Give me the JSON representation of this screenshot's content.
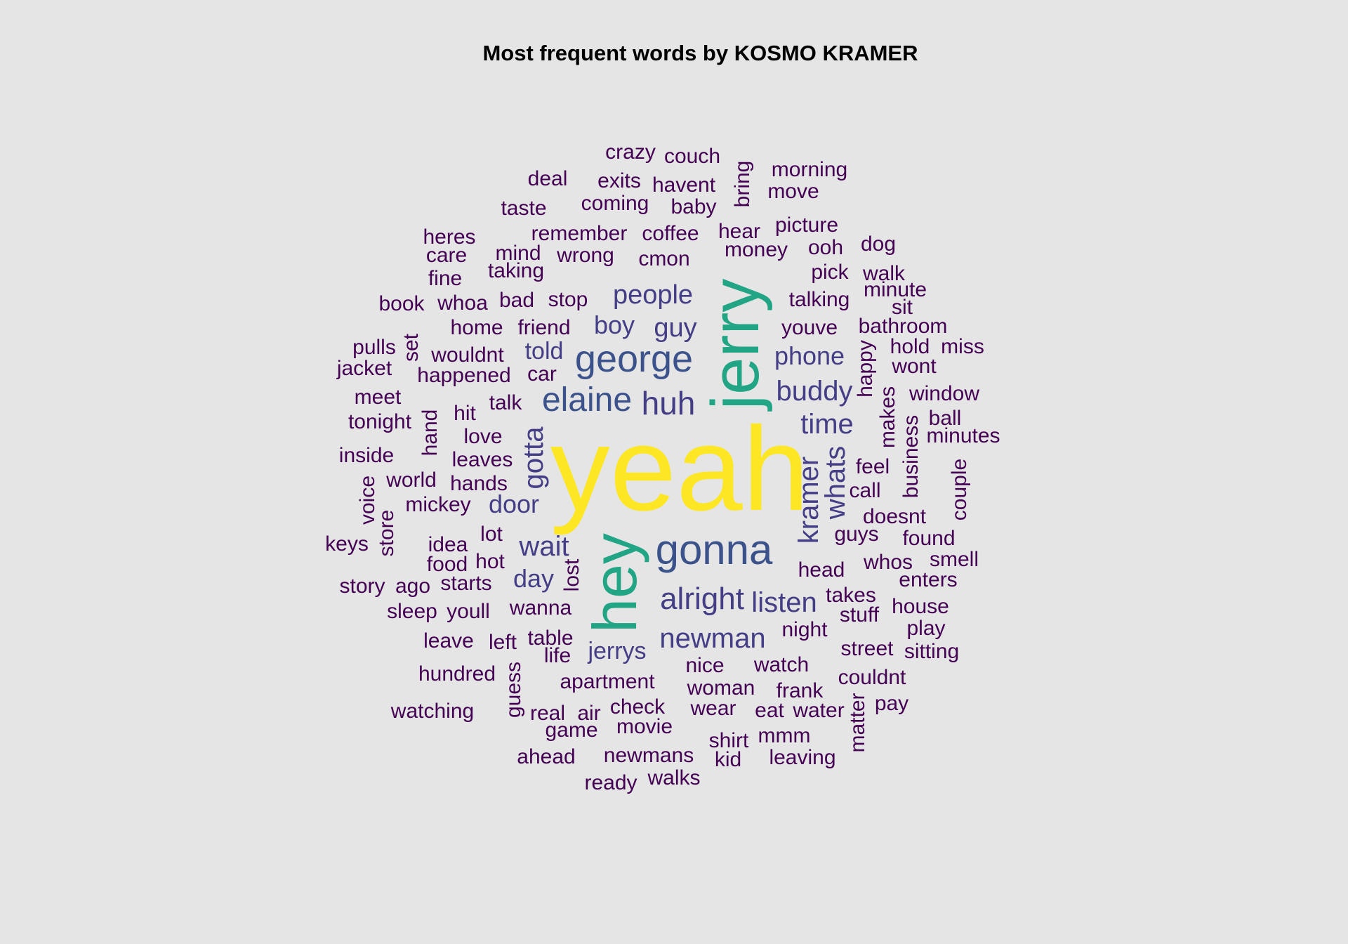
{
  "chart_data": {
    "type": "wordcloud",
    "title": "Most frequent words by KOSMO KRAMER",
    "palette": {
      "level_5": "#fde725",
      "level_4": "#21a585",
      "level_3": "#3b528b",
      "level_2": "#433e85",
      "level_1": "#440154"
    },
    "words": [
      {
        "text": "yeah",
        "level": 5
      },
      {
        "text": "jerry",
        "level": 4
      },
      {
        "text": "hey",
        "level": 4
      },
      {
        "text": "gonna",
        "level": 3
      },
      {
        "text": "george",
        "level": 3
      },
      {
        "text": "elaine",
        "level": 3
      },
      {
        "text": "huh",
        "level": 2
      },
      {
        "text": "alright",
        "level": 2
      },
      {
        "text": "newman",
        "level": 2
      },
      {
        "text": "kramer",
        "level": 2
      },
      {
        "text": "time",
        "level": 2
      },
      {
        "text": "buddy",
        "level": 2
      },
      {
        "text": "listen",
        "level": 2
      },
      {
        "text": "whats",
        "level": 2
      },
      {
        "text": "gotta",
        "level": 2
      },
      {
        "text": "wait",
        "level": 2
      },
      {
        "text": "people",
        "level": 2
      },
      {
        "text": "guy",
        "level": 2
      },
      {
        "text": "boy",
        "level": 2
      },
      {
        "text": "phone",
        "level": 2
      },
      {
        "text": "told",
        "level": 2
      },
      {
        "text": "door",
        "level": 2
      },
      {
        "text": "day",
        "level": 2
      },
      {
        "text": "jerrys",
        "level": 2
      },
      {
        "text": "crazy",
        "level": 1
      },
      {
        "text": "couch",
        "level": 1
      },
      {
        "text": "deal",
        "level": 1
      },
      {
        "text": "exits",
        "level": 1
      },
      {
        "text": "havent",
        "level": 1
      },
      {
        "text": "bring",
        "level": 1
      },
      {
        "text": "morning",
        "level": 1
      },
      {
        "text": "move",
        "level": 1
      },
      {
        "text": "taste",
        "level": 1
      },
      {
        "text": "coming",
        "level": 1
      },
      {
        "text": "baby",
        "level": 1
      },
      {
        "text": "heres",
        "level": 1
      },
      {
        "text": "remember",
        "level": 1
      },
      {
        "text": "coffee",
        "level": 1
      },
      {
        "text": "hear",
        "level": 1
      },
      {
        "text": "picture",
        "level": 1
      },
      {
        "text": "care",
        "level": 1
      },
      {
        "text": "mind",
        "level": 1
      },
      {
        "text": "wrong",
        "level": 1
      },
      {
        "text": "cmon",
        "level": 1
      },
      {
        "text": "money",
        "level": 1
      },
      {
        "text": "ooh",
        "level": 1
      },
      {
        "text": "dog",
        "level": 1
      },
      {
        "text": "fine",
        "level": 1
      },
      {
        "text": "taking",
        "level": 1
      },
      {
        "text": "pick",
        "level": 1
      },
      {
        "text": "walk",
        "level": 1
      },
      {
        "text": "minute",
        "level": 1
      },
      {
        "text": "book",
        "level": 1
      },
      {
        "text": "whoa",
        "level": 1
      },
      {
        "text": "bad",
        "level": 1
      },
      {
        "text": "stop",
        "level": 1
      },
      {
        "text": "talking",
        "level": 1
      },
      {
        "text": "sit",
        "level": 1
      },
      {
        "text": "home",
        "level": 1
      },
      {
        "text": "friend",
        "level": 1
      },
      {
        "text": "youve",
        "level": 1
      },
      {
        "text": "bathroom",
        "level": 1
      },
      {
        "text": "pulls",
        "level": 1
      },
      {
        "text": "set",
        "level": 1
      },
      {
        "text": "wouldnt",
        "level": 1
      },
      {
        "text": "hold",
        "level": 1
      },
      {
        "text": "miss",
        "level": 1
      },
      {
        "text": "jacket",
        "level": 1
      },
      {
        "text": "happened",
        "level": 1
      },
      {
        "text": "car",
        "level": 1
      },
      {
        "text": "happy",
        "level": 1
      },
      {
        "text": "wont",
        "level": 1
      },
      {
        "text": "meet",
        "level": 1
      },
      {
        "text": "talk",
        "level": 1
      },
      {
        "text": "window",
        "level": 1
      },
      {
        "text": "tonight",
        "level": 1
      },
      {
        "text": "hit",
        "level": 1
      },
      {
        "text": "hand",
        "level": 1
      },
      {
        "text": "makes",
        "level": 1
      },
      {
        "text": "ball",
        "level": 1
      },
      {
        "text": "love",
        "level": 1
      },
      {
        "text": "minutes",
        "level": 1
      },
      {
        "text": "inside",
        "level": 1
      },
      {
        "text": "leaves",
        "level": 1
      },
      {
        "text": "business",
        "level": 1
      },
      {
        "text": "feel",
        "level": 1
      },
      {
        "text": "world",
        "level": 1
      },
      {
        "text": "hands",
        "level": 1
      },
      {
        "text": "call",
        "level": 1
      },
      {
        "text": "voice",
        "level": 1
      },
      {
        "text": "couple",
        "level": 1
      },
      {
        "text": "mickey",
        "level": 1
      },
      {
        "text": "doesnt",
        "level": 1
      },
      {
        "text": "store",
        "level": 1
      },
      {
        "text": "lot",
        "level": 1
      },
      {
        "text": "guys",
        "level": 1
      },
      {
        "text": "keys",
        "level": 1
      },
      {
        "text": "idea",
        "level": 1
      },
      {
        "text": "found",
        "level": 1
      },
      {
        "text": "food",
        "level": 1
      },
      {
        "text": "hot",
        "level": 1
      },
      {
        "text": "lost",
        "level": 1
      },
      {
        "text": "head",
        "level": 1
      },
      {
        "text": "whos",
        "level": 1
      },
      {
        "text": "smell",
        "level": 1
      },
      {
        "text": "story",
        "level": 1
      },
      {
        "text": "ago",
        "level": 1
      },
      {
        "text": "starts",
        "level": 1
      },
      {
        "text": "enters",
        "level": 1
      },
      {
        "text": "takes",
        "level": 1
      },
      {
        "text": "sleep",
        "level": 1
      },
      {
        "text": "youll",
        "level": 1
      },
      {
        "text": "wanna",
        "level": 1
      },
      {
        "text": "house",
        "level": 1
      },
      {
        "text": "stuff",
        "level": 1
      },
      {
        "text": "night",
        "level": 1
      },
      {
        "text": "play",
        "level": 1
      },
      {
        "text": "leave",
        "level": 1
      },
      {
        "text": "left",
        "level": 1
      },
      {
        "text": "table",
        "level": 1
      },
      {
        "text": "street",
        "level": 1
      },
      {
        "text": "sitting",
        "level": 1
      },
      {
        "text": "life",
        "level": 1
      },
      {
        "text": "nice",
        "level": 1
      },
      {
        "text": "watch",
        "level": 1
      },
      {
        "text": "hundred",
        "level": 1
      },
      {
        "text": "guess",
        "level": 1
      },
      {
        "text": "apartment",
        "level": 1
      },
      {
        "text": "couldnt",
        "level": 1
      },
      {
        "text": "woman",
        "level": 1
      },
      {
        "text": "frank",
        "level": 1
      },
      {
        "text": "watching",
        "level": 1
      },
      {
        "text": "real",
        "level": 1
      },
      {
        "text": "air",
        "level": 1
      },
      {
        "text": "check",
        "level": 1
      },
      {
        "text": "wear",
        "level": 1
      },
      {
        "text": "eat",
        "level": 1
      },
      {
        "text": "water",
        "level": 1
      },
      {
        "text": "pay",
        "level": 1
      },
      {
        "text": "matter",
        "level": 1
      },
      {
        "text": "game",
        "level": 1
      },
      {
        "text": "movie",
        "level": 1
      },
      {
        "text": "shirt",
        "level": 1
      },
      {
        "text": "mmm",
        "level": 1
      },
      {
        "text": "ahead",
        "level": 1
      },
      {
        "text": "newmans",
        "level": 1
      },
      {
        "text": "kid",
        "level": 1
      },
      {
        "text": "leaving",
        "level": 1
      },
      {
        "text": "ready",
        "level": 1
      },
      {
        "text": "walks",
        "level": 1
      }
    ]
  }
}
